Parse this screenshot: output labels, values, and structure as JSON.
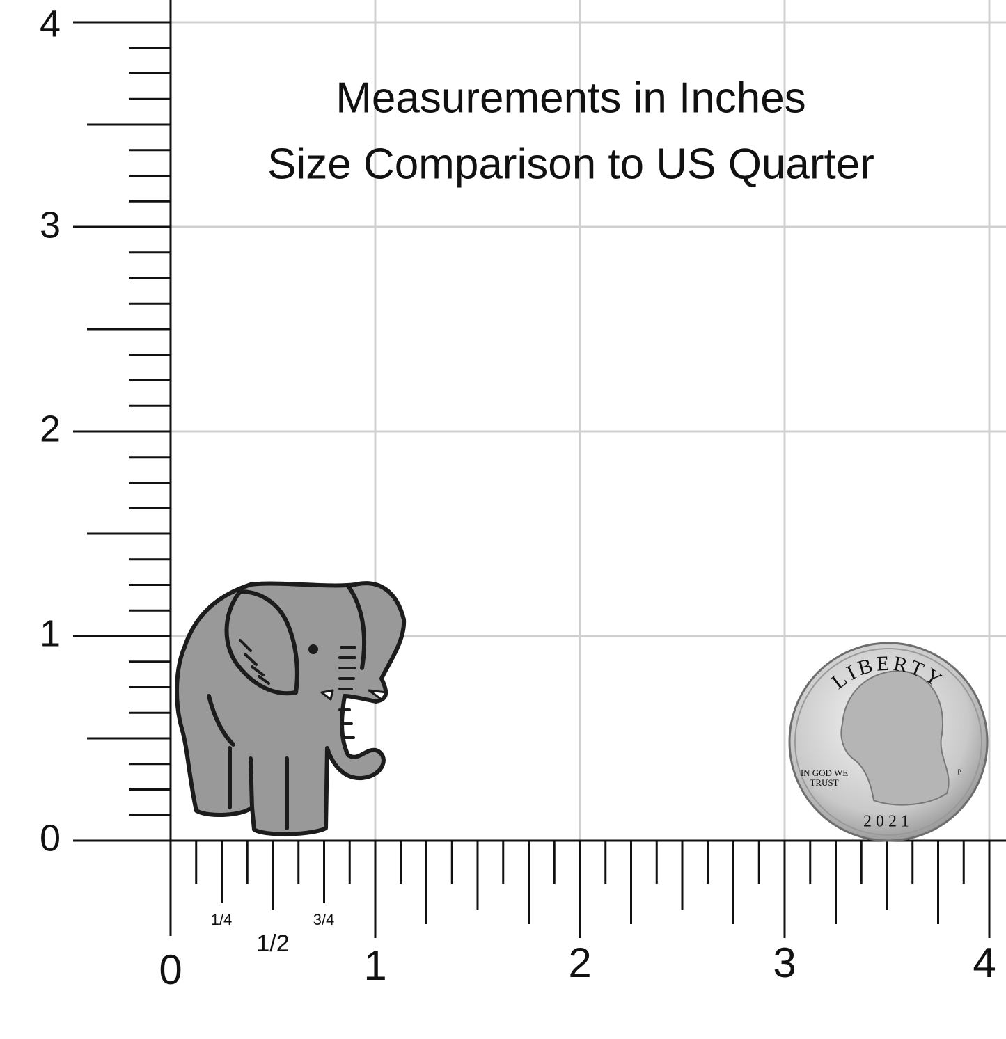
{
  "header": {
    "lines": [
      "Measurements in Inches",
      "Size Comparison to US Quarter"
    ]
  },
  "y_axis": {
    "labels": [
      "0",
      "1",
      "2",
      "3",
      "4"
    ]
  },
  "x_axis": {
    "labels": [
      "0",
      "1/4",
      "1/2",
      "3/4",
      "1",
      "2",
      "3",
      "4"
    ]
  },
  "coin": {
    "top_text": "LIBERTY",
    "motto": [
      "IN GOD WE",
      "TRUST"
    ],
    "mint": "P",
    "year": "2021"
  }
}
